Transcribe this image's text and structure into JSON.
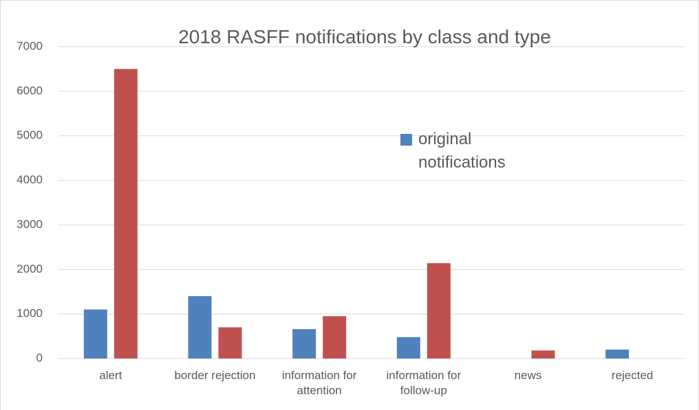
{
  "chart_data": {
    "type": "bar",
    "title": "2018 RASFF notifications by class and type",
    "categories": [
      "alert",
      "border rejection",
      "information for attention",
      "information for follow-up",
      "news",
      "rejected"
    ],
    "series": [
      {
        "name": "original notifications",
        "color": "#4f81bd",
        "values": [
          1100,
          1400,
          660,
          480,
          0,
          200
        ]
      },
      {
        "color": "#c0504d",
        "values": [
          6500,
          700,
          950,
          2140,
          180,
          0
        ]
      }
    ],
    "ylim": [
      0,
      7000
    ],
    "yticks": [
      0,
      1000,
      2000,
      3000,
      4000,
      5000,
      6000,
      7000
    ],
    "grid": true
  }
}
